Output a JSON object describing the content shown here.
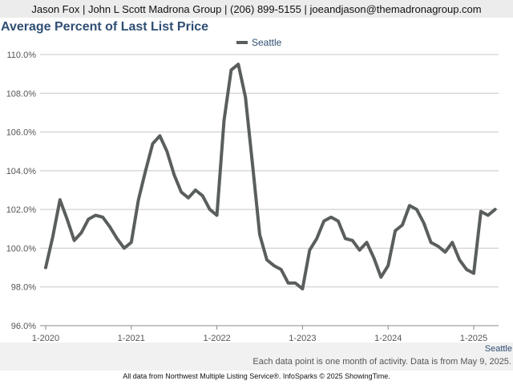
{
  "header": {
    "contact_text": "Jason Fox | John L Scott Madrona Group | (206) 899-5155 | joeandjason@themadronagroup.com"
  },
  "footer": {
    "series_label": "Seattle",
    "note": "Each data point is one month of activity. Data is from May 9, 2025.",
    "source": "All data from Northwest Multiple Listing Service®. InfoSparks © 2025 ShowingTime."
  },
  "chart_data": {
    "type": "line",
    "title": "Average Percent of Last List Price",
    "xlabel": "",
    "ylabel": "",
    "ylim": [
      96,
      110
    ],
    "y_ticks": [
      "96.0%",
      "98.0%",
      "100.0%",
      "102.0%",
      "104.0%",
      "106.0%",
      "108.0%",
      "110.0%"
    ],
    "y_tick_values": [
      96,
      98,
      100,
      102,
      104,
      106,
      108,
      110
    ],
    "x_tick_labels": [
      "1-2020",
      "1-2021",
      "1-2022",
      "1-2023",
      "1-2024",
      "1-2025"
    ],
    "grid": true,
    "legend_position": "top-center",
    "colors": {
      "series": "#5a5f5c",
      "title": "#2f4e73",
      "grid": "#c8c8c8"
    },
    "x": [
      "2020-01",
      "2020-02",
      "2020-03",
      "2020-04",
      "2020-05",
      "2020-06",
      "2020-07",
      "2020-08",
      "2020-09",
      "2020-10",
      "2020-11",
      "2020-12",
      "2021-01",
      "2021-02",
      "2021-03",
      "2021-04",
      "2021-05",
      "2021-06",
      "2021-07",
      "2021-08",
      "2021-09",
      "2021-10",
      "2021-11",
      "2021-12",
      "2022-01",
      "2022-02",
      "2022-03",
      "2022-04",
      "2022-05",
      "2022-06",
      "2022-07",
      "2022-08",
      "2022-09",
      "2022-10",
      "2022-11",
      "2022-12",
      "2023-01",
      "2023-02",
      "2023-03",
      "2023-04",
      "2023-05",
      "2023-06",
      "2023-07",
      "2023-08",
      "2023-09",
      "2023-10",
      "2023-11",
      "2023-12",
      "2024-01",
      "2024-02",
      "2024-03",
      "2024-04",
      "2024-05",
      "2024-06",
      "2024-07",
      "2024-08",
      "2024-09",
      "2024-10",
      "2024-11",
      "2024-12",
      "2025-01",
      "2025-02",
      "2025-03",
      "2025-04"
    ],
    "series": [
      {
        "name": "Seattle",
        "values": [
          99.0,
          100.6,
          102.5,
          101.5,
          100.4,
          100.8,
          101.5,
          101.7,
          101.6,
          101.1,
          100.5,
          100.0,
          100.3,
          102.5,
          104.0,
          105.4,
          105.8,
          105.0,
          103.8,
          102.9,
          102.6,
          103.0,
          102.7,
          102.0,
          101.7,
          106.6,
          109.2,
          109.5,
          107.8,
          104.3,
          100.7,
          99.4,
          99.1,
          98.9,
          98.2,
          98.2,
          97.9,
          99.9,
          100.5,
          101.4,
          101.6,
          101.4,
          100.5,
          100.4,
          99.9,
          100.3,
          99.5,
          98.5,
          99.1,
          100.9,
          101.2,
          102.2,
          102.0,
          101.3,
          100.3,
          100.1,
          99.8,
          100.3,
          99.4,
          98.9,
          98.7,
          101.9,
          101.7,
          102.0
        ]
      }
    ]
  }
}
